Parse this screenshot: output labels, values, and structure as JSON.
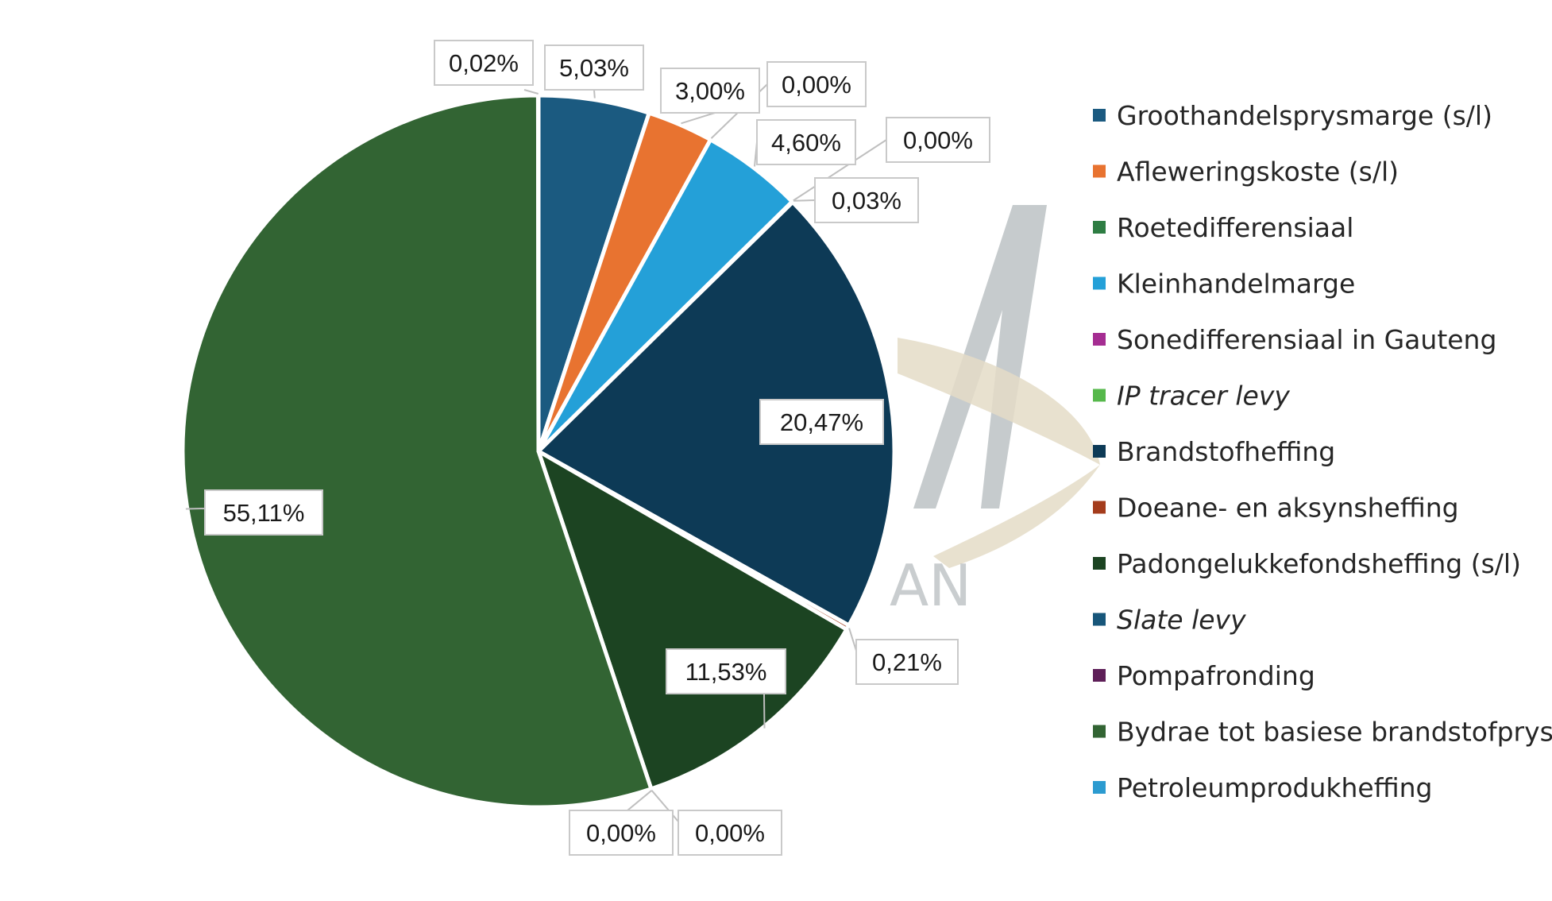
{
  "chart_data": {
    "type": "pie",
    "start_angle_deg": 0,
    "direction": "clockwise",
    "legend_position": "right",
    "slices": [
      {
        "name": "Groothandelsprysmarge (s/l)",
        "value": 5.03,
        "label": "5,03%",
        "color": "#1b5a80",
        "italic": false
      },
      {
        "name": "Afleweringskoste (s/l)",
        "value": 3.0,
        "label": "3,00%",
        "color": "#e87330",
        "italic": false
      },
      {
        "name": "Roetedifferensiaal",
        "value": 0.0,
        "label": "0,00%",
        "color": "#2e7d43",
        "italic": false
      },
      {
        "name": "Kleinhandelmarge",
        "value": 4.6,
        "label": "4,60%",
        "color": "#24a0d8",
        "italic": false
      },
      {
        "name": "Sonedifferensiaal in Gauteng",
        "value": 0.0,
        "label": "0,00%",
        "color": "#a52d92",
        "italic": false
      },
      {
        "name": "IP tracer levy",
        "value": 0.03,
        "label": "0,03%",
        "color": "#56b84b",
        "italic": true
      },
      {
        "name": "Brandstofheffing",
        "value": 20.47,
        "label": "20,47%",
        "color": "#0d3a56",
        "italic": false
      },
      {
        "name": "Doeane- en aksynsheffing",
        "value": 0.21,
        "label": "0,21%",
        "color": "#a43c1c",
        "italic": false
      },
      {
        "name": "Padongelukkefondsheffing (s/l)",
        "value": 11.53,
        "label": "11,53%",
        "color": "#1c4422",
        "italic": false
      },
      {
        "name": "Slate levy",
        "value": 0.0,
        "label": "0,00%",
        "color": "#17567a",
        "italic": true
      },
      {
        "name": "Pompafronding",
        "value": 0.0,
        "label": "0,00%",
        "color": "#5e1f58",
        "italic": false
      },
      {
        "name": "Bydrae tot basiese brandstofprys",
        "value": 55.11,
        "label": "55,11%",
        "color": "#326433",
        "italic": false
      },
      {
        "name": "Petroleumprodukheffing",
        "value": 0.02,
        "label": "0,02%",
        "color": "#2c9bd0",
        "italic": false
      }
    ]
  },
  "watermark": {
    "text": "AN",
    "colors": {
      "letter": "#b3b9bc",
      "swoosh": "#e4dcc7"
    }
  }
}
